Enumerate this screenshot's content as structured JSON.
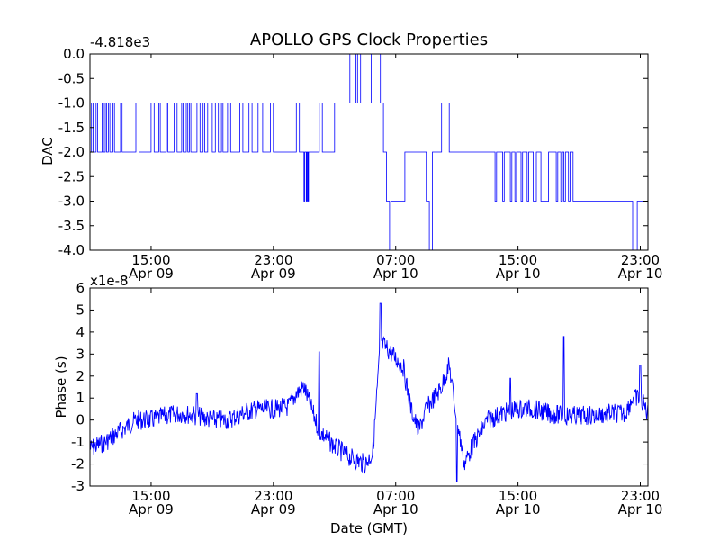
{
  "figure": {
    "title": "APOLLO GPS Clock Properties",
    "xlabel": "Date (GMT)"
  },
  "chart_data": [
    {
      "type": "line",
      "title": "APOLLO GPS Clock Properties",
      "ylabel": "DAC",
      "offset_text": "-4.818e3",
      "ylim": [
        -4.0,
        0.0
      ],
      "yticks": [
        "0.0",
        "-0.5",
        "-1.0",
        "-1.5",
        "-2.0",
        "-2.5",
        "-3.0",
        "-3.5",
        "-4.0"
      ],
      "xlim": [
        "2013-04-09T11:00",
        "2013-04-10T23:30"
      ],
      "xticks": [
        {
          "time": "15:00",
          "date": "Apr 09"
        },
        {
          "time": "23:00",
          "date": "Apr 09"
        },
        {
          "time": "07:00",
          "date": "Apr 10"
        },
        {
          "time": "15:00",
          "date": "Apr 10"
        },
        {
          "time": "23:00",
          "date": "Apr 10"
        }
      ],
      "series": [
        {
          "color": "#0000ff",
          "points": [
            [
              "2013-04-09T11:00",
              -2
            ],
            [
              "2013-04-09T11:06",
              -1
            ],
            [
              "2013-04-09T11:12",
              -2
            ],
            [
              "2013-04-09T11:24",
              -1
            ],
            [
              "2013-04-09T11:30",
              -2
            ],
            [
              "2013-04-09T11:48",
              -1
            ],
            [
              "2013-04-09T11:53",
              -2
            ],
            [
              "2013-04-09T12:00",
              -1
            ],
            [
              "2013-04-09T12:05",
              -2
            ],
            [
              "2013-04-09T12:12",
              -1
            ],
            [
              "2013-04-09T12:18",
              -2
            ],
            [
              "2013-04-09T12:30",
              -1
            ],
            [
              "2013-04-09T12:36",
              -2
            ],
            [
              "2013-04-09T13:00",
              -1
            ],
            [
              "2013-04-09T13:06",
              -2
            ],
            [
              "2013-04-09T14:00",
              -1
            ],
            [
              "2013-04-09T14:12",
              -2
            ],
            [
              "2013-04-09T15:00",
              -1
            ],
            [
              "2013-04-09T15:12",
              -2
            ],
            [
              "2013-04-09T15:30",
              -1
            ],
            [
              "2013-04-09T15:36",
              -2
            ],
            [
              "2013-04-09T16:00",
              -1
            ],
            [
              "2013-04-09T16:06",
              -2
            ],
            [
              "2013-04-09T16:30",
              -1
            ],
            [
              "2013-04-09T16:42",
              -2
            ],
            [
              "2013-04-09T17:00",
              -1
            ],
            [
              "2013-04-09T17:06",
              -2
            ],
            [
              "2013-04-09T17:18",
              -1
            ],
            [
              "2013-04-09T17:24",
              -2
            ],
            [
              "2013-04-09T17:30",
              -1
            ],
            [
              "2013-04-09T17:36",
              -2
            ],
            [
              "2013-04-09T18:00",
              -1
            ],
            [
              "2013-04-09T18:12",
              -2
            ],
            [
              "2013-04-09T18:24",
              -1
            ],
            [
              "2013-04-09T18:30",
              -2
            ],
            [
              "2013-04-09T18:42",
              -1
            ],
            [
              "2013-04-09T19:00",
              -2
            ],
            [
              "2013-04-09T19:12",
              -1
            ],
            [
              "2013-04-09T19:24",
              -2
            ],
            [
              "2013-04-09T19:36",
              -1
            ],
            [
              "2013-04-09T19:42",
              -2
            ],
            [
              "2013-04-09T20:00",
              -1
            ],
            [
              "2013-04-09T20:12",
              -2
            ],
            [
              "2013-04-09T20:48",
              -1
            ],
            [
              "2013-04-09T21:00",
              -2
            ],
            [
              "2013-04-09T21:24",
              -1
            ],
            [
              "2013-04-09T21:36",
              -2
            ],
            [
              "2013-04-09T22:00",
              -1
            ],
            [
              "2013-04-09T22:18",
              -2
            ],
            [
              "2013-04-09T22:48",
              -1
            ],
            [
              "2013-04-09T23:00",
              -2
            ],
            [
              "2013-04-10T00:30",
              -1
            ],
            [
              "2013-04-10T00:42",
              -2
            ],
            [
              "2013-04-10T01:00",
              -3
            ],
            [
              "2013-04-10T01:03",
              -2
            ],
            [
              "2013-04-10T01:09",
              -3
            ],
            [
              "2013-04-10T01:12",
              -2
            ],
            [
              "2013-04-10T01:15",
              -3
            ],
            [
              "2013-04-10T01:18",
              -2
            ],
            [
              "2013-04-10T02:00",
              -1
            ],
            [
              "2013-04-10T02:12",
              -2
            ],
            [
              "2013-04-10T03:00",
              -1
            ],
            [
              "2013-04-10T03:30",
              -1
            ],
            [
              "2013-04-10T04:00",
              0
            ],
            [
              "2013-04-10T04:24",
              -1
            ],
            [
              "2013-04-10T04:30",
              0
            ],
            [
              "2013-04-10T04:42",
              -1
            ],
            [
              "2013-04-10T05:12",
              -1
            ],
            [
              "2013-04-10T05:24",
              0
            ],
            [
              "2013-04-10T06:00",
              -1
            ],
            [
              "2013-04-10T06:12",
              -2
            ],
            [
              "2013-04-10T06:24",
              -3
            ],
            [
              "2013-04-10T06:36",
              -4
            ],
            [
              "2013-04-10T06:42",
              -3
            ],
            [
              "2013-04-10T07:30",
              -3
            ],
            [
              "2013-04-10T07:36",
              -2
            ],
            [
              "2013-04-10T09:00",
              -3
            ],
            [
              "2013-04-10T09:12",
              -4
            ],
            [
              "2013-04-10T09:24",
              -2
            ],
            [
              "2013-04-10T10:00",
              -1
            ],
            [
              "2013-04-10T10:30",
              -2
            ],
            [
              "2013-04-10T13:30",
              -3
            ],
            [
              "2013-04-10T13:36",
              -2
            ],
            [
              "2013-04-10T14:00",
              -3
            ],
            [
              "2013-04-10T14:06",
              -2
            ],
            [
              "2013-04-10T14:30",
              -3
            ],
            [
              "2013-04-10T14:36",
              -2
            ],
            [
              "2013-04-10T14:48",
              -3
            ],
            [
              "2013-04-10T14:54",
              -2
            ],
            [
              "2013-04-10T15:12",
              -3
            ],
            [
              "2013-04-10T15:18",
              -2
            ],
            [
              "2013-04-10T15:36",
              -3
            ],
            [
              "2013-04-10T15:42",
              -2
            ],
            [
              "2013-04-10T16:00",
              -3
            ],
            [
              "2013-04-10T16:12",
              -2
            ],
            [
              "2013-04-10T16:30",
              -3
            ],
            [
              "2013-04-10T17:00",
              -2
            ],
            [
              "2013-04-10T17:30",
              -3
            ],
            [
              "2013-04-10T17:36",
              -2
            ],
            [
              "2013-04-10T17:48",
              -3
            ],
            [
              "2013-04-10T17:54",
              -2
            ],
            [
              "2013-04-10T18:00",
              -3
            ],
            [
              "2013-04-10T18:06",
              -2
            ],
            [
              "2013-04-10T18:18",
              -3
            ],
            [
              "2013-04-10T18:24",
              -2
            ],
            [
              "2013-04-10T18:36",
              -3
            ],
            [
              "2013-04-10T22:30",
              -4
            ],
            [
              "2013-04-10T22:48",
              -3
            ],
            [
              "2013-04-10T23:30",
              -3
            ]
          ]
        }
      ]
    },
    {
      "type": "line",
      "ylabel": "Phase (s)",
      "xlabel": "Date (GMT)",
      "offset_text": "x1e-8",
      "ylim": [
        -3,
        6
      ],
      "yticks": [
        "6",
        "5",
        "4",
        "3",
        "2",
        "1",
        "0",
        "-1",
        "-2",
        "-3"
      ],
      "xlim": [
        "2013-04-09T11:00",
        "2013-04-10T23:30"
      ],
      "xticks": [
        {
          "time": "15:00",
          "date": "Apr 09"
        },
        {
          "time": "23:00",
          "date": "Apr 09"
        },
        {
          "time": "07:00",
          "date": "Apr 10"
        },
        {
          "time": "15:00",
          "date": "Apr 10"
        },
        {
          "time": "23:00",
          "date": "Apr 10"
        }
      ],
      "series": [
        {
          "color": "#0000ff",
          "points": [
            [
              "2013-04-09T11:00",
              -1.3
            ],
            [
              "2013-04-09T12:00",
              -1.0
            ],
            [
              "2013-04-09T13:00",
              -0.5
            ],
            [
              "2013-04-09T14:00",
              0.0
            ],
            [
              "2013-04-09T15:00",
              0.0
            ],
            [
              "2013-04-09T16:00",
              0.2
            ],
            [
              "2013-04-09T17:00",
              0.3
            ],
            [
              "2013-04-09T18:00",
              0.2
            ],
            [
              "2013-04-09T19:00",
              0.0
            ],
            [
              "2013-04-09T20:00",
              0.0
            ],
            [
              "2013-04-09T21:00",
              0.3
            ],
            [
              "2013-04-09T22:00",
              0.5
            ],
            [
              "2013-04-09T23:00",
              0.5
            ],
            [
              "2013-04-10T00:00",
              0.6
            ],
            [
              "2013-04-10T00:30",
              1.2
            ],
            [
              "2013-04-10T01:00",
              1.5
            ],
            [
              "2013-04-10T01:30",
              0.5
            ],
            [
              "2013-04-10T02:00",
              -0.5
            ],
            [
              "2013-04-10T03:00",
              -1.2
            ],
            [
              "2013-04-10T04:00",
              -1.7
            ],
            [
              "2013-04-10T05:00",
              -2.0
            ],
            [
              "2013-04-10T05:30",
              -1.5
            ],
            [
              "2013-04-10T06:00",
              3.5
            ],
            [
              "2013-04-10T06:30",
              3.2
            ],
            [
              "2013-04-10T07:00",
              2.8
            ],
            [
              "2013-04-10T07:30",
              2.4
            ],
            [
              "2013-04-10T08:00",
              0.5
            ],
            [
              "2013-04-10T08:30",
              -0.5
            ],
            [
              "2013-04-10T09:00",
              0.5
            ],
            [
              "2013-04-10T10:00",
              1.5
            ],
            [
              "2013-04-10T10:30",
              2.5
            ],
            [
              "2013-04-10T11:00",
              0.0
            ],
            [
              "2013-04-10T11:30",
              -2.0
            ],
            [
              "2013-04-10T12:00",
              -1.2
            ],
            [
              "2013-04-10T13:00",
              0.0
            ],
            [
              "2013-04-10T14:00",
              0.3
            ],
            [
              "2013-04-10T15:00",
              0.5
            ],
            [
              "2013-04-10T16:00",
              0.5
            ],
            [
              "2013-04-10T17:00",
              0.3
            ],
            [
              "2013-04-10T18:00",
              0.2
            ],
            [
              "2013-04-10T19:00",
              0.2
            ],
            [
              "2013-04-10T20:00",
              0.2
            ],
            [
              "2013-04-10T21:00",
              0.3
            ],
            [
              "2013-04-10T22:00",
              0.3
            ],
            [
              "2013-04-10T22:30",
              1.0
            ],
            [
              "2013-04-10T23:00",
              1.0
            ],
            [
              "2013-04-10T23:30",
              0.3
            ]
          ],
          "spikes": [
            [
              "2013-04-09T18:00",
              1.2
            ],
            [
              "2013-04-10T02:00",
              3.1
            ],
            [
              "2013-04-10T06:00",
              5.3
            ],
            [
              "2013-04-10T11:00",
              -2.8
            ],
            [
              "2013-04-10T14:30",
              1.9
            ],
            [
              "2013-04-10T18:00",
              3.8
            ],
            [
              "2013-04-10T23:00",
              2.5
            ]
          ]
        }
      ]
    }
  ]
}
